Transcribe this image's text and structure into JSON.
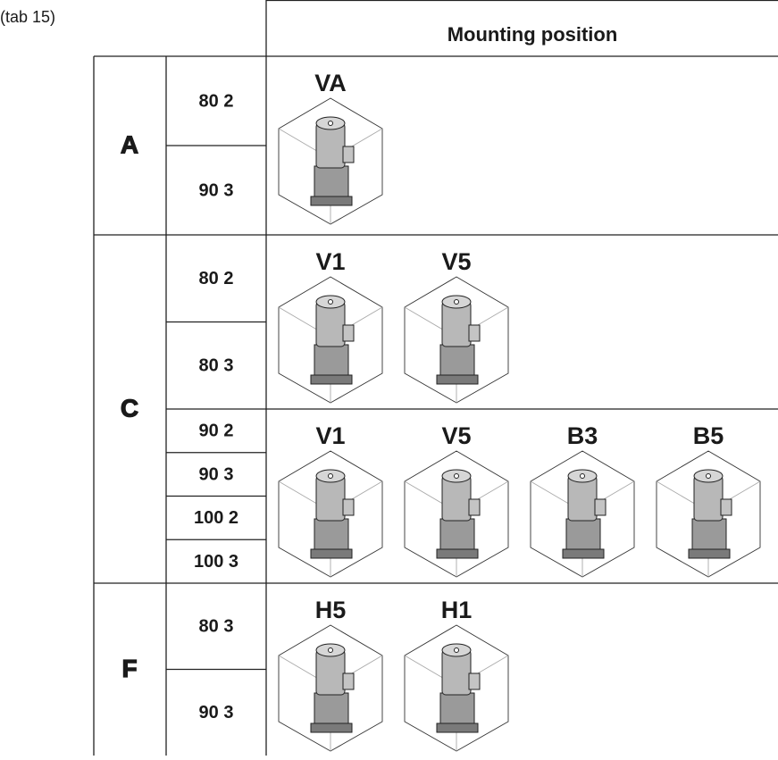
{
  "caption": "(tab 15)",
  "header": "Mounting position",
  "groups": [
    {
      "label": "A",
      "rows": [
        {
          "sizes": [
            "80 2",
            "90 3"
          ],
          "positions": [
            "VA"
          ]
        }
      ]
    },
    {
      "label": "C",
      "rows": [
        {
          "sizes": [
            "80 2",
            "80 3"
          ],
          "positions": [
            "V1",
            "V5"
          ]
        },
        {
          "sizes": [
            "90 2",
            "90 3",
            "100 2",
            "100 3"
          ],
          "positions": [
            "V1",
            "V5",
            "B3",
            "B5"
          ]
        }
      ]
    },
    {
      "label": "F",
      "rows": [
        {
          "sizes": [
            "80 3",
            "90 3"
          ],
          "positions": [
            "H5",
            "H1"
          ]
        }
      ]
    }
  ]
}
